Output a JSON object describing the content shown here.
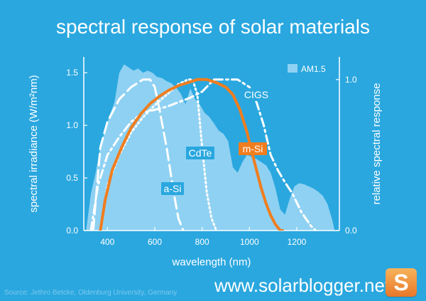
{
  "page": {
    "title": "spectral response of solar materials",
    "source": "Source: Jethro Betcke, Oldenburg University, Germany",
    "site": "www.solarblogger.net",
    "logo_letter": "S"
  },
  "colors": {
    "background": "#2aa7df",
    "irradiance_fill": "#8fd1f2",
    "curve_white": "#ffffff",
    "msi_orange": "#f07d1e",
    "msi_label_bg": "#f07d1e"
  },
  "chart_data": {
    "type": "line",
    "title": "spectral response of solar materials",
    "xlabel": "wavelength (nm)",
    "ylabel_left": "spectral irradiance (W/m²nm)",
    "ylabel_right": "relative spectral response",
    "xlim": [
      300,
      1380
    ],
    "ylim_left": [
      0,
      1.65
    ],
    "ylim_right": [
      0,
      1.15
    ],
    "x_ticks": [
      400,
      600,
      800,
      1000,
      1200
    ],
    "y_ticks_left": [
      0.0,
      0.5,
      1.0,
      1.5
    ],
    "y_ticks_left_labels": [
      "0.0",
      "0.5",
      "1.0",
      "1.5"
    ],
    "y_ticks_right": [
      0.0,
      1.0
    ],
    "y_ticks_right_labels": [
      "0.0",
      "1.0"
    ],
    "legend": {
      "label": "AM1.5",
      "position": "top-right"
    },
    "irradiance": {
      "name": "AM1.5",
      "axis": "left",
      "x": [
        310,
        330,
        350,
        370,
        390,
        410,
        430,
        450,
        470,
        490,
        510,
        530,
        550,
        570,
        590,
        610,
        630,
        650,
        670,
        690,
        710,
        730,
        750,
        770,
        790,
        810,
        830,
        850,
        870,
        890,
        910,
        930,
        950,
        970,
        990,
        1010,
        1030,
        1050,
        1070,
        1090,
        1110,
        1130,
        1150,
        1170,
        1190,
        1210,
        1230,
        1250,
        1270,
        1290,
        1310,
        1330,
        1350,
        1360
      ],
      "y": [
        0.0,
        0.35,
        0.55,
        0.8,
        0.95,
        1.1,
        1.22,
        1.5,
        1.58,
        1.55,
        1.52,
        1.54,
        1.5,
        1.52,
        1.5,
        1.46,
        1.45,
        1.42,
        1.4,
        1.36,
        1.3,
        1.2,
        1.35,
        1.25,
        1.2,
        1.12,
        1.08,
        1.02,
        0.95,
        0.92,
        0.85,
        0.6,
        0.55,
        0.65,
        0.72,
        0.7,
        0.68,
        0.65,
        0.62,
        0.55,
        0.4,
        0.2,
        0.15,
        0.3,
        0.42,
        0.45,
        0.44,
        0.42,
        0.4,
        0.37,
        0.33,
        0.25,
        0.1,
        0.0
      ]
    },
    "series": [
      {
        "name": "a-Si",
        "axis": "right",
        "style": "dashed",
        "x": [
          340,
          370,
          400,
          450,
          500,
          550,
          580,
          600,
          620,
          650,
          680,
          700,
          720
        ],
        "y": [
          0.0,
          0.55,
          0.72,
          0.87,
          0.95,
          1.0,
          1.0,
          0.95,
          0.8,
          0.55,
          0.25,
          0.08,
          0.0
        ]
      },
      {
        "name": "CdTe",
        "axis": "right",
        "style": "dotted",
        "x": [
          370,
          400,
          450,
          500,
          550,
          600,
          650,
          700,
          740,
          760,
          780,
          800,
          820,
          840,
          860
        ],
        "y": [
          0.0,
          0.3,
          0.5,
          0.65,
          0.75,
          0.83,
          0.9,
          0.97,
          1.0,
          1.0,
          0.9,
          0.55,
          0.25,
          0.08,
          0.0
        ]
      },
      {
        "name": "CIGS",
        "axis": "right",
        "style": "dash-dot",
        "x": [
          330,
          360,
          400,
          450,
          500,
          550,
          600,
          650,
          700,
          750,
          800,
          850,
          900,
          950,
          1000,
          1030,
          1060,
          1090,
          1120,
          1150,
          1180,
          1220,
          1260,
          1280
        ],
        "y": [
          0.0,
          0.3,
          0.5,
          0.62,
          0.72,
          0.78,
          0.8,
          0.82,
          0.85,
          0.88,
          0.92,
          1.0,
          1.0,
          1.0,
          0.95,
          0.85,
          0.7,
          0.5,
          0.4,
          0.32,
          0.25,
          0.12,
          0.03,
          0.0
        ]
      },
      {
        "name": "m-Si",
        "axis": "right",
        "style": "solid",
        "x": [
          370,
          390,
          420,
          460,
          500,
          540,
          580,
          620,
          660,
          700,
          740,
          780,
          820,
          860,
          900,
          930,
          960,
          990,
          1010,
          1030,
          1050,
          1070,
          1090,
          1110,
          1130,
          1140
        ],
        "y": [
          0.0,
          0.2,
          0.4,
          0.55,
          0.68,
          0.77,
          0.84,
          0.89,
          0.93,
          0.96,
          0.98,
          1.0,
          1.0,
          0.98,
          0.95,
          0.9,
          0.8,
          0.65,
          0.52,
          0.4,
          0.28,
          0.18,
          0.1,
          0.04,
          0.0,
          0.0
        ]
      }
    ],
    "labels": {
      "asi": "a-Si",
      "cdte": "CdTe",
      "cigs": "CIGS",
      "msi": "m-Si"
    }
  }
}
